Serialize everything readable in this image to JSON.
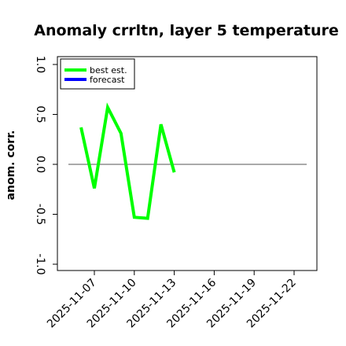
{
  "chart_data": {
    "type": "line",
    "title": "Anomaly crrltn, layer 5 temperature",
    "ylabel": "anom. corr.",
    "xlabel": "",
    "ylim": [
      -1.0,
      1.0
    ],
    "yticks": [
      "-1.0",
      "-0.5",
      "0.0",
      "0.5",
      "1.0"
    ],
    "xticks": [
      "2025-11-07",
      "2025-11-10",
      "2025-11-13",
      "2025-11-16",
      "2025-11-19",
      "2025-11-22"
    ],
    "highlighted_xtick": "2025-11-13",
    "highlight_color": "#2e8b2e",
    "reference_line": 0.0,
    "legend_position": "top-left",
    "series": [
      {
        "name": "best est.",
        "color": "#00ff00",
        "x": [
          "2025-11-06",
          "2025-11-07",
          "2025-11-08",
          "2025-11-09",
          "2025-11-10",
          "2025-11-11",
          "2025-11-12",
          "2025-11-13"
        ],
        "values": [
          0.37,
          -0.24,
          0.57,
          0.31,
          -0.53,
          -0.54,
          0.4,
          -0.08
        ]
      },
      {
        "name": "forecast",
        "color": "#0000ff",
        "x": [],
        "values": []
      }
    ]
  }
}
